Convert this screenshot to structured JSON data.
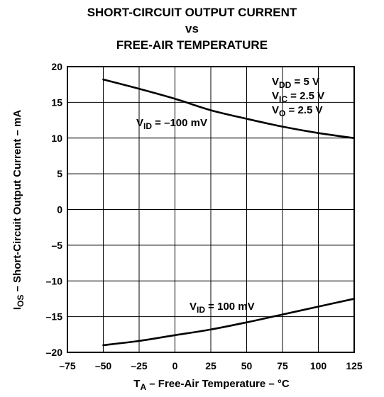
{
  "chart_data": {
    "type": "line",
    "title_lines": [
      "SHORT-CIRCUIT OUTPUT CURRENT",
      "vs",
      "FREE-AIR TEMPERATURE"
    ],
    "xlabel": {
      "main": "T",
      "sub": "A",
      "rest": " – Free-Air Temperature – °C"
    },
    "ylabel": {
      "main": "I",
      "sub": "OS",
      "rest": " – Short-Circuit Output Current – mA"
    },
    "xlim": [
      -75,
      125
    ],
    "ylim": [
      -20,
      20
    ],
    "x_ticks": [
      -75,
      -50,
      -25,
      0,
      25,
      50,
      75,
      100,
      125
    ],
    "x_tick_labels": [
      "–75",
      "–50",
      "–25",
      "0",
      "25",
      "50",
      "75",
      "100",
      "125"
    ],
    "y_ticks": [
      20,
      15,
      10,
      5,
      0,
      -5,
      -10,
      -15,
      -20
    ],
    "y_tick_labels": [
      "20",
      "15",
      "10",
      "5",
      "0",
      "–5",
      "–10",
      "–15",
      "–20"
    ],
    "grid": true,
    "series": [
      {
        "name": "V_ID = –100 mV",
        "x": [
          -50,
          -25,
          0,
          25,
          50,
          75,
          100,
          125
        ],
        "y": [
          18.2,
          16.9,
          15.5,
          13.9,
          12.7,
          11.6,
          10.7,
          10.0
        ]
      },
      {
        "name": "V_ID = 100 mV",
        "x": [
          -50,
          -25,
          0,
          25,
          50,
          75,
          100,
          125
        ],
        "y": [
          -19.0,
          -18.4,
          -17.6,
          -16.8,
          -15.8,
          -14.7,
          -13.6,
          -12.5
        ]
      }
    ],
    "annotations": [
      {
        "name": "vid-neg-label",
        "main": "V",
        "sub": "ID",
        "rest": " = –100 mV"
      },
      {
        "name": "vid-pos-label",
        "main": "V",
        "sub": "ID",
        "rest": " = 100 mV"
      },
      {
        "name": "vdd-label",
        "main": "V",
        "sub": "DD",
        "rest": " = 5 V"
      },
      {
        "name": "vic-label",
        "main": "V",
        "sub": "IC",
        "rest": " = 2.5 V"
      },
      {
        "name": "vo-label",
        "main": "V",
        "sub": "O",
        "rest": " = 2.5 V"
      }
    ],
    "line_color": "#000000",
    "grid_color": "#000000"
  }
}
